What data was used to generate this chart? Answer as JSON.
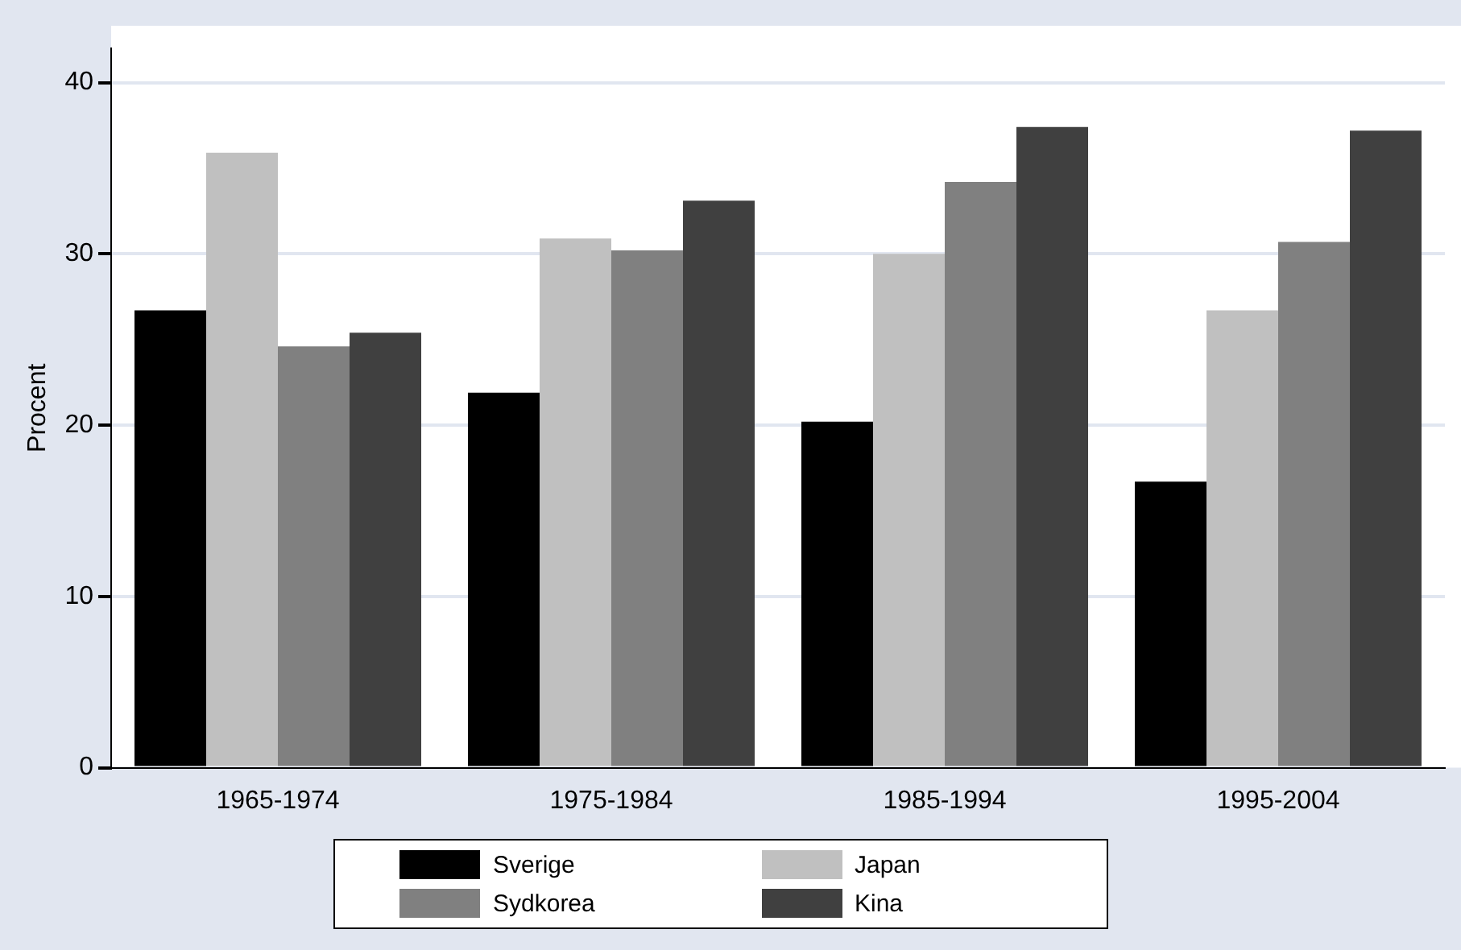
{
  "chart_data": {
    "type": "bar",
    "ylabel": "Procent",
    "categories": [
      "1965-1974",
      "1975-1984",
      "1985-1994",
      "1995-2004"
    ],
    "series": [
      {
        "name": "Sverige",
        "color": "#000000",
        "values": [
          26.7,
          21.9,
          20.2,
          16.7
        ]
      },
      {
        "name": "Japan",
        "color": "#c0c0c0",
        "values": [
          35.9,
          30.9,
          30.0,
          26.7
        ]
      },
      {
        "name": "Sydkorea",
        "color": "#808080",
        "values": [
          24.6,
          30.2,
          34.2,
          30.7
        ]
      },
      {
        "name": "Kina",
        "color": "#404040",
        "values": [
          25.4,
          33.1,
          37.4,
          37.2
        ]
      }
    ],
    "ylim": [
      0,
      42
    ],
    "yticks": [
      0,
      10,
      20,
      30,
      40
    ],
    "grid": "y",
    "legend": "bottom"
  }
}
